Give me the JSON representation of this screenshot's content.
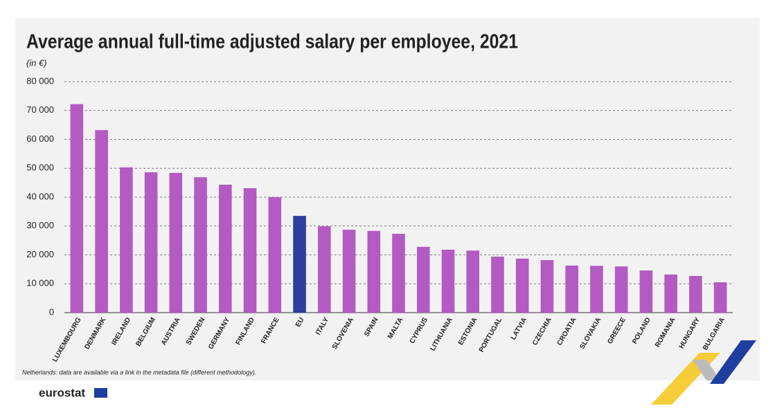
{
  "chart_data": {
    "type": "bar",
    "title": "Average annual full-time adjusted salary per employee, 2021",
    "subtitle": "(in €)",
    "note": "Netherlands: data are available via a link in the metadata file (different methodology).",
    "source": "eurostat",
    "categories": [
      "LUXEMBOURG",
      "DENMARK",
      "IRELAND",
      "BELGIUM",
      "AUSTRIA",
      "SWEDEN",
      "GERMANY",
      "FINLAND",
      "FRANCE",
      "EU",
      "ITALY",
      "SLOVENIA",
      "SPAIN",
      "MALTA",
      "CYPRUS",
      "LITHUANIA",
      "ESTONIA",
      "PORTUGAL",
      "LATVIA",
      "CZECHIA",
      "CROATIA",
      "SLOVAKIA",
      "GREECE",
      "POLAND",
      "ROMANIA",
      "HUNGARY",
      "BULGARIA"
    ],
    "values": [
      72200,
      63200,
      50300,
      48600,
      48400,
      46900,
      44300,
      43100,
      40000,
      33500,
      29900,
      28700,
      28300,
      27300,
      22800,
      21800,
      21500,
      19400,
      18700,
      18200,
      16300,
      16200,
      16000,
      14600,
      13200,
      12700,
      10500
    ],
    "colors": [
      "#b35ac3",
      "#b35ac3",
      "#b35ac3",
      "#b35ac3",
      "#b35ac3",
      "#b35ac3",
      "#b35ac3",
      "#b35ac3",
      "#b35ac3",
      "#2d3e9f",
      "#b35ac3",
      "#b35ac3",
      "#b35ac3",
      "#b35ac3",
      "#b35ac3",
      "#b35ac3",
      "#b35ac3",
      "#b35ac3",
      "#b35ac3",
      "#b35ac3",
      "#b35ac3",
      "#b35ac3",
      "#b35ac3",
      "#b35ac3",
      "#b35ac3",
      "#b35ac3",
      "#b35ac3"
    ],
    "ylim": [
      0,
      80000
    ],
    "yticks": [
      {
        "value": 0,
        "label": "0"
      },
      {
        "value": 10000,
        "label": "10 000"
      },
      {
        "value": 20000,
        "label": "20 000"
      },
      {
        "value": 30000,
        "label": "30 000"
      },
      {
        "value": 40000,
        "label": "40 000"
      },
      {
        "value": 50000,
        "label": "50 000"
      },
      {
        "value": 60000,
        "label": "60 000"
      },
      {
        "value": 70000,
        "label": "70 000"
      },
      {
        "value": 80000,
        "label": "80 000"
      }
    ],
    "grid": true
  }
}
